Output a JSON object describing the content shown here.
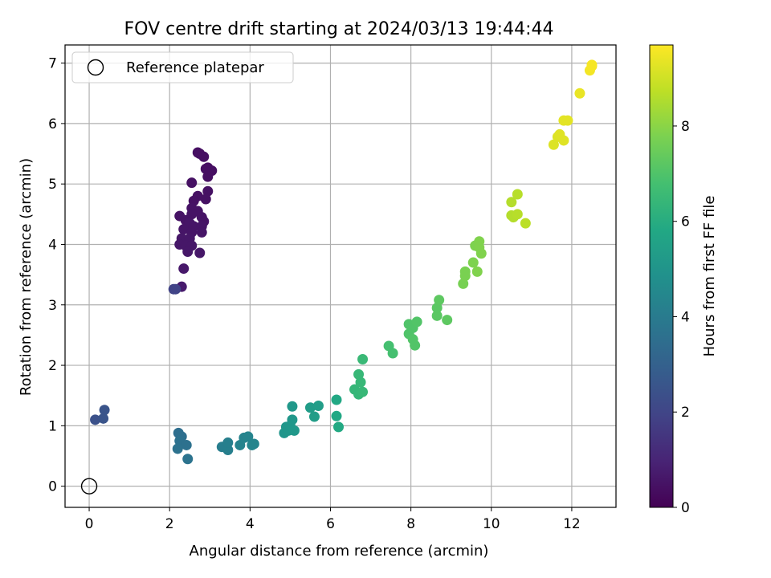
{
  "chart_data": {
    "type": "scatter",
    "title": "FOV centre drift starting at 2024/03/13 19:44:44",
    "xlabel": "Angular distance from reference (arcmin)",
    "ylabel": "Rotation from reference (arcmin)",
    "xlim": [
      -0.6,
      13.1
    ],
    "ylim": [
      -0.35,
      7.3
    ],
    "xticks": [
      0,
      2,
      4,
      6,
      8,
      10,
      12
    ],
    "yticks": [
      0,
      1,
      2,
      3,
      4,
      5,
      6,
      7
    ],
    "grid": true,
    "legend": {
      "placement": "top-left",
      "entries": [
        "Reference platepar"
      ]
    },
    "reference_point": {
      "label": "Reference platepar",
      "x": 0,
      "y": 0
    },
    "colorbar": {
      "label": "Hours from first FF file",
      "range": [
        0,
        9.7
      ],
      "ticks": [
        0,
        2,
        4,
        6,
        8
      ],
      "colormap": "viridis"
    },
    "points": [
      [
        2.7,
        5.52,
        0.4
      ],
      [
        2.75,
        5.5,
        0.4
      ],
      [
        2.85,
        5.45,
        0.4
      ],
      [
        2.95,
        5.27,
        0.4
      ],
      [
        3.05,
        5.22,
        0.4
      ],
      [
        2.9,
        5.25,
        0.4
      ],
      [
        2.95,
        5.12,
        0.4
      ],
      [
        2.55,
        5.02,
        0.45
      ],
      [
        2.95,
        4.88,
        0.45
      ],
      [
        2.7,
        4.8,
        0.45
      ],
      [
        2.6,
        4.72,
        0.45
      ],
      [
        2.9,
        4.75,
        0.45
      ],
      [
        2.55,
        4.6,
        0.5
      ],
      [
        2.7,
        4.55,
        0.5
      ],
      [
        2.25,
        4.47,
        0.5
      ],
      [
        2.4,
        4.4,
        0.5
      ],
      [
        2.55,
        4.5,
        0.5
      ],
      [
        2.8,
        4.45,
        0.5
      ],
      [
        2.85,
        4.38,
        0.5
      ],
      [
        2.5,
        4.35,
        0.55
      ],
      [
        2.6,
        4.3,
        0.55
      ],
      [
        2.8,
        4.3,
        0.55
      ],
      [
        2.35,
        4.25,
        0.55
      ],
      [
        2.55,
        4.2,
        0.55
      ],
      [
        2.8,
        4.2,
        0.55
      ],
      [
        2.3,
        4.1,
        0.6
      ],
      [
        2.5,
        4.1,
        0.6
      ],
      [
        2.25,
        4.0,
        0.6
      ],
      [
        2.4,
        3.98,
        0.6
      ],
      [
        2.55,
        3.98,
        0.6
      ],
      [
        2.45,
        3.88,
        0.6
      ],
      [
        2.75,
        3.86,
        0.6
      ],
      [
        2.35,
        3.6,
        0.65
      ],
      [
        2.3,
        3.3,
        0.7
      ],
      [
        2.1,
        3.26,
        1.9
      ],
      [
        2.15,
        3.26,
        1.95
      ],
      [
        0.15,
        1.1,
        2.4
      ],
      [
        0.35,
        1.12,
        2.5
      ],
      [
        0.38,
        1.26,
        2.5
      ],
      [
        2.22,
        0.88,
        3.5
      ],
      [
        2.3,
        0.82,
        3.55
      ],
      [
        2.25,
        0.75,
        3.6
      ],
      [
        2.42,
        0.68,
        3.6
      ],
      [
        2.2,
        0.62,
        3.65
      ],
      [
        2.45,
        0.45,
        3.7
      ],
      [
        3.3,
        0.65,
        4.1
      ],
      [
        3.45,
        0.6,
        4.15
      ],
      [
        3.45,
        0.72,
        4.15
      ],
      [
        3.75,
        0.68,
        4.3
      ],
      [
        3.85,
        0.8,
        4.3
      ],
      [
        3.95,
        0.82,
        4.35
      ],
      [
        4.05,
        0.68,
        4.4
      ],
      [
        4.1,
        0.7,
        4.4
      ],
      [
        4.85,
        0.88,
        5.0
      ],
      [
        4.9,
        0.98,
        5.05
      ],
      [
        4.95,
        0.92,
        5.05
      ],
      [
        5.0,
        1.0,
        5.1
      ],
      [
        5.05,
        1.1,
        5.1
      ],
      [
        5.1,
        0.92,
        5.15
      ],
      [
        5.05,
        1.32,
        5.15
      ],
      [
        5.5,
        1.3,
        5.3
      ],
      [
        5.6,
        1.15,
        5.35
      ],
      [
        5.7,
        1.33,
        5.35
      ],
      [
        6.15,
        1.43,
        5.8
      ],
      [
        6.15,
        1.16,
        5.8
      ],
      [
        6.2,
        0.98,
        5.85
      ],
      [
        6.6,
        1.6,
        6.4
      ],
      [
        6.7,
        1.52,
        6.4
      ],
      [
        6.7,
        1.85,
        6.45
      ],
      [
        6.75,
        1.72,
        6.45
      ],
      [
        6.8,
        1.56,
        6.45
      ],
      [
        6.8,
        2.1,
        6.5
      ],
      [
        7.45,
        2.32,
        6.8
      ],
      [
        7.55,
        2.2,
        6.8
      ],
      [
        7.95,
        2.68,
        7.0
      ],
      [
        8.05,
        2.62,
        7.0
      ],
      [
        7.95,
        2.52,
        7.0
      ],
      [
        8.05,
        2.43,
        7.05
      ],
      [
        8.1,
        2.33,
        7.05
      ],
      [
        8.15,
        2.72,
        7.05
      ],
      [
        8.65,
        2.82,
        7.2
      ],
      [
        8.65,
        2.95,
        7.2
      ],
      [
        8.7,
        3.08,
        7.25
      ],
      [
        8.9,
        2.75,
        7.25
      ],
      [
        9.3,
        3.35,
        7.7
      ],
      [
        9.35,
        3.55,
        7.75
      ],
      [
        9.35,
        3.48,
        7.75
      ],
      [
        9.55,
        3.7,
        7.8
      ],
      [
        9.6,
        3.98,
        7.8
      ],
      [
        9.7,
        4.05,
        7.85
      ],
      [
        9.7,
        3.95,
        7.85
      ],
      [
        9.75,
        3.85,
        7.85
      ],
      [
        9.65,
        3.55,
        7.85
      ],
      [
        10.5,
        4.7,
        8.6
      ],
      [
        10.5,
        4.48,
        8.6
      ],
      [
        10.55,
        4.45,
        8.6
      ],
      [
        10.65,
        4.5,
        8.65
      ],
      [
        10.65,
        4.83,
        8.65
      ],
      [
        10.85,
        4.35,
        8.7
      ],
      [
        11.55,
        5.65,
        9.2
      ],
      [
        11.65,
        5.78,
        9.2
      ],
      [
        11.7,
        5.82,
        9.25
      ],
      [
        11.8,
        5.72,
        9.25
      ],
      [
        11.8,
        6.05,
        9.3
      ],
      [
        11.9,
        6.05,
        9.3
      ],
      [
        12.2,
        6.5,
        9.4
      ],
      [
        12.45,
        6.88,
        9.55
      ],
      [
        12.5,
        6.95,
        9.6
      ],
      [
        12.5,
        6.97,
        9.6
      ]
    ]
  }
}
